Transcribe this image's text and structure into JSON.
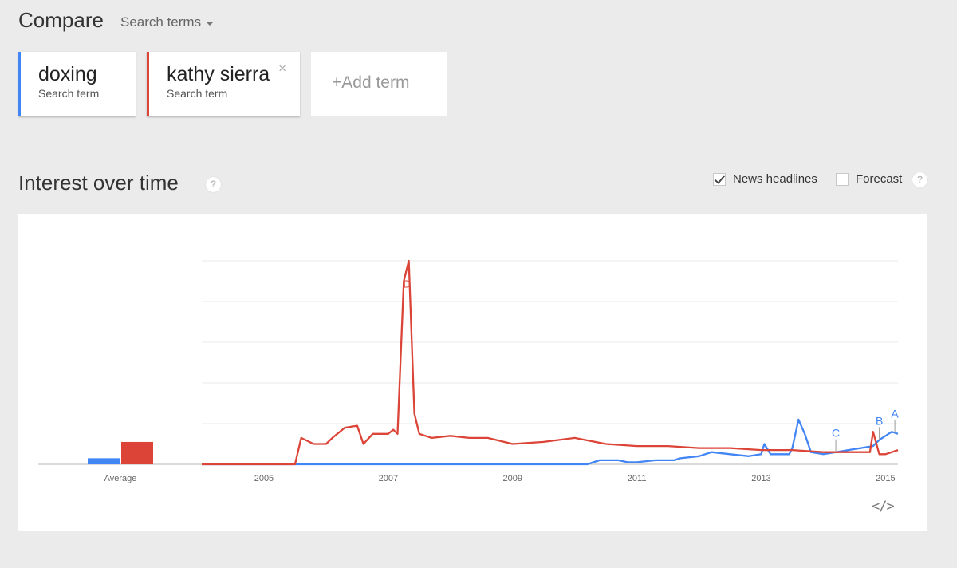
{
  "header": {
    "title": "Compare",
    "dropdown_label": "Search terms"
  },
  "terms": [
    {
      "name": "doxing",
      "subtitle": "Search term",
      "color": "#4285f4"
    },
    {
      "name": "kathy sierra",
      "subtitle": "Search term",
      "color": "#db4437",
      "close_glyph": "×"
    }
  ],
  "add_term": {
    "label": "+Add term"
  },
  "section": {
    "title": "Interest over time",
    "help_glyph": "?",
    "options": {
      "news_headlines": "News headlines",
      "news_checked": true,
      "forecast": "Forecast",
      "forecast_checked": false
    }
  },
  "chart_data": {
    "type": "line",
    "title": "",
    "xlabel": "",
    "ylabel": "",
    "x_ticks": [
      "2005",
      "2007",
      "2009",
      "2011",
      "2013",
      "2015"
    ],
    "x_range": [
      2004.0,
      2015.2
    ],
    "ylim": [
      0,
      100
    ],
    "grid": true,
    "average_bars": {
      "label": "Average",
      "values": [
        3,
        11
      ]
    },
    "series": [
      {
        "name": "doxing",
        "color": "#4285f4",
        "x": [
          2004.0,
          2010.2,
          2010.4,
          2010.7,
          2010.85,
          2011.0,
          2011.3,
          2011.6,
          2011.7,
          2012.0,
          2012.2,
          2012.5,
          2012.8,
          2013.0,
          2013.05,
          2013.15,
          2013.3,
          2013.45,
          2013.5,
          2013.6,
          2013.7,
          2013.8,
          2014.0,
          2014.2,
          2014.4,
          2014.6,
          2014.8,
          2014.9,
          2015.0,
          2015.1,
          2015.2
        ],
        "values": [
          0,
          0,
          2,
          2,
          1,
          1,
          2,
          2,
          3,
          4,
          6,
          5,
          4,
          5,
          10,
          5,
          5,
          5,
          8,
          22,
          15,
          6,
          5,
          6,
          7,
          8,
          9,
          12,
          14,
          16,
          15
        ]
      },
      {
        "name": "kathy sierra",
        "color": "#db4437",
        "x": [
          2004.0,
          2005.5,
          2005.6,
          2005.8,
          2006.0,
          2006.1,
          2006.3,
          2006.5,
          2006.6,
          2006.75,
          2006.9,
          2007.0,
          2007.08,
          2007.15,
          2007.25,
          2007.33,
          2007.42,
          2007.5,
          2007.7,
          2008.0,
          2008.3,
          2008.6,
          2009.0,
          2009.5,
          2010.0,
          2010.5,
          2011.0,
          2011.5,
          2012.0,
          2012.5,
          2013.0,
          2013.5,
          2014.0,
          2014.5,
          2014.75,
          2014.8,
          2014.9,
          2015.0,
          2015.2
        ],
        "values": [
          0,
          0,
          13,
          10,
          10,
          13,
          18,
          19,
          10,
          15,
          15,
          15,
          17,
          15,
          90,
          100,
          25,
          15,
          13,
          14,
          13,
          13,
          10,
          11,
          13,
          10,
          9,
          9,
          8,
          8,
          7,
          7,
          6,
          6,
          6,
          16,
          5,
          5,
          7
        ]
      }
    ],
    "annotations": [
      {
        "label": "D",
        "x": 2007.3,
        "series": "kathy sierra"
      },
      {
        "label": "C",
        "x": 2014.2,
        "series": "doxing"
      },
      {
        "label": "B",
        "x": 2014.9,
        "series": "doxing"
      },
      {
        "label": "A",
        "x": 2015.15,
        "series": "doxing"
      }
    ]
  },
  "embed": {
    "glyph": "</>"
  }
}
